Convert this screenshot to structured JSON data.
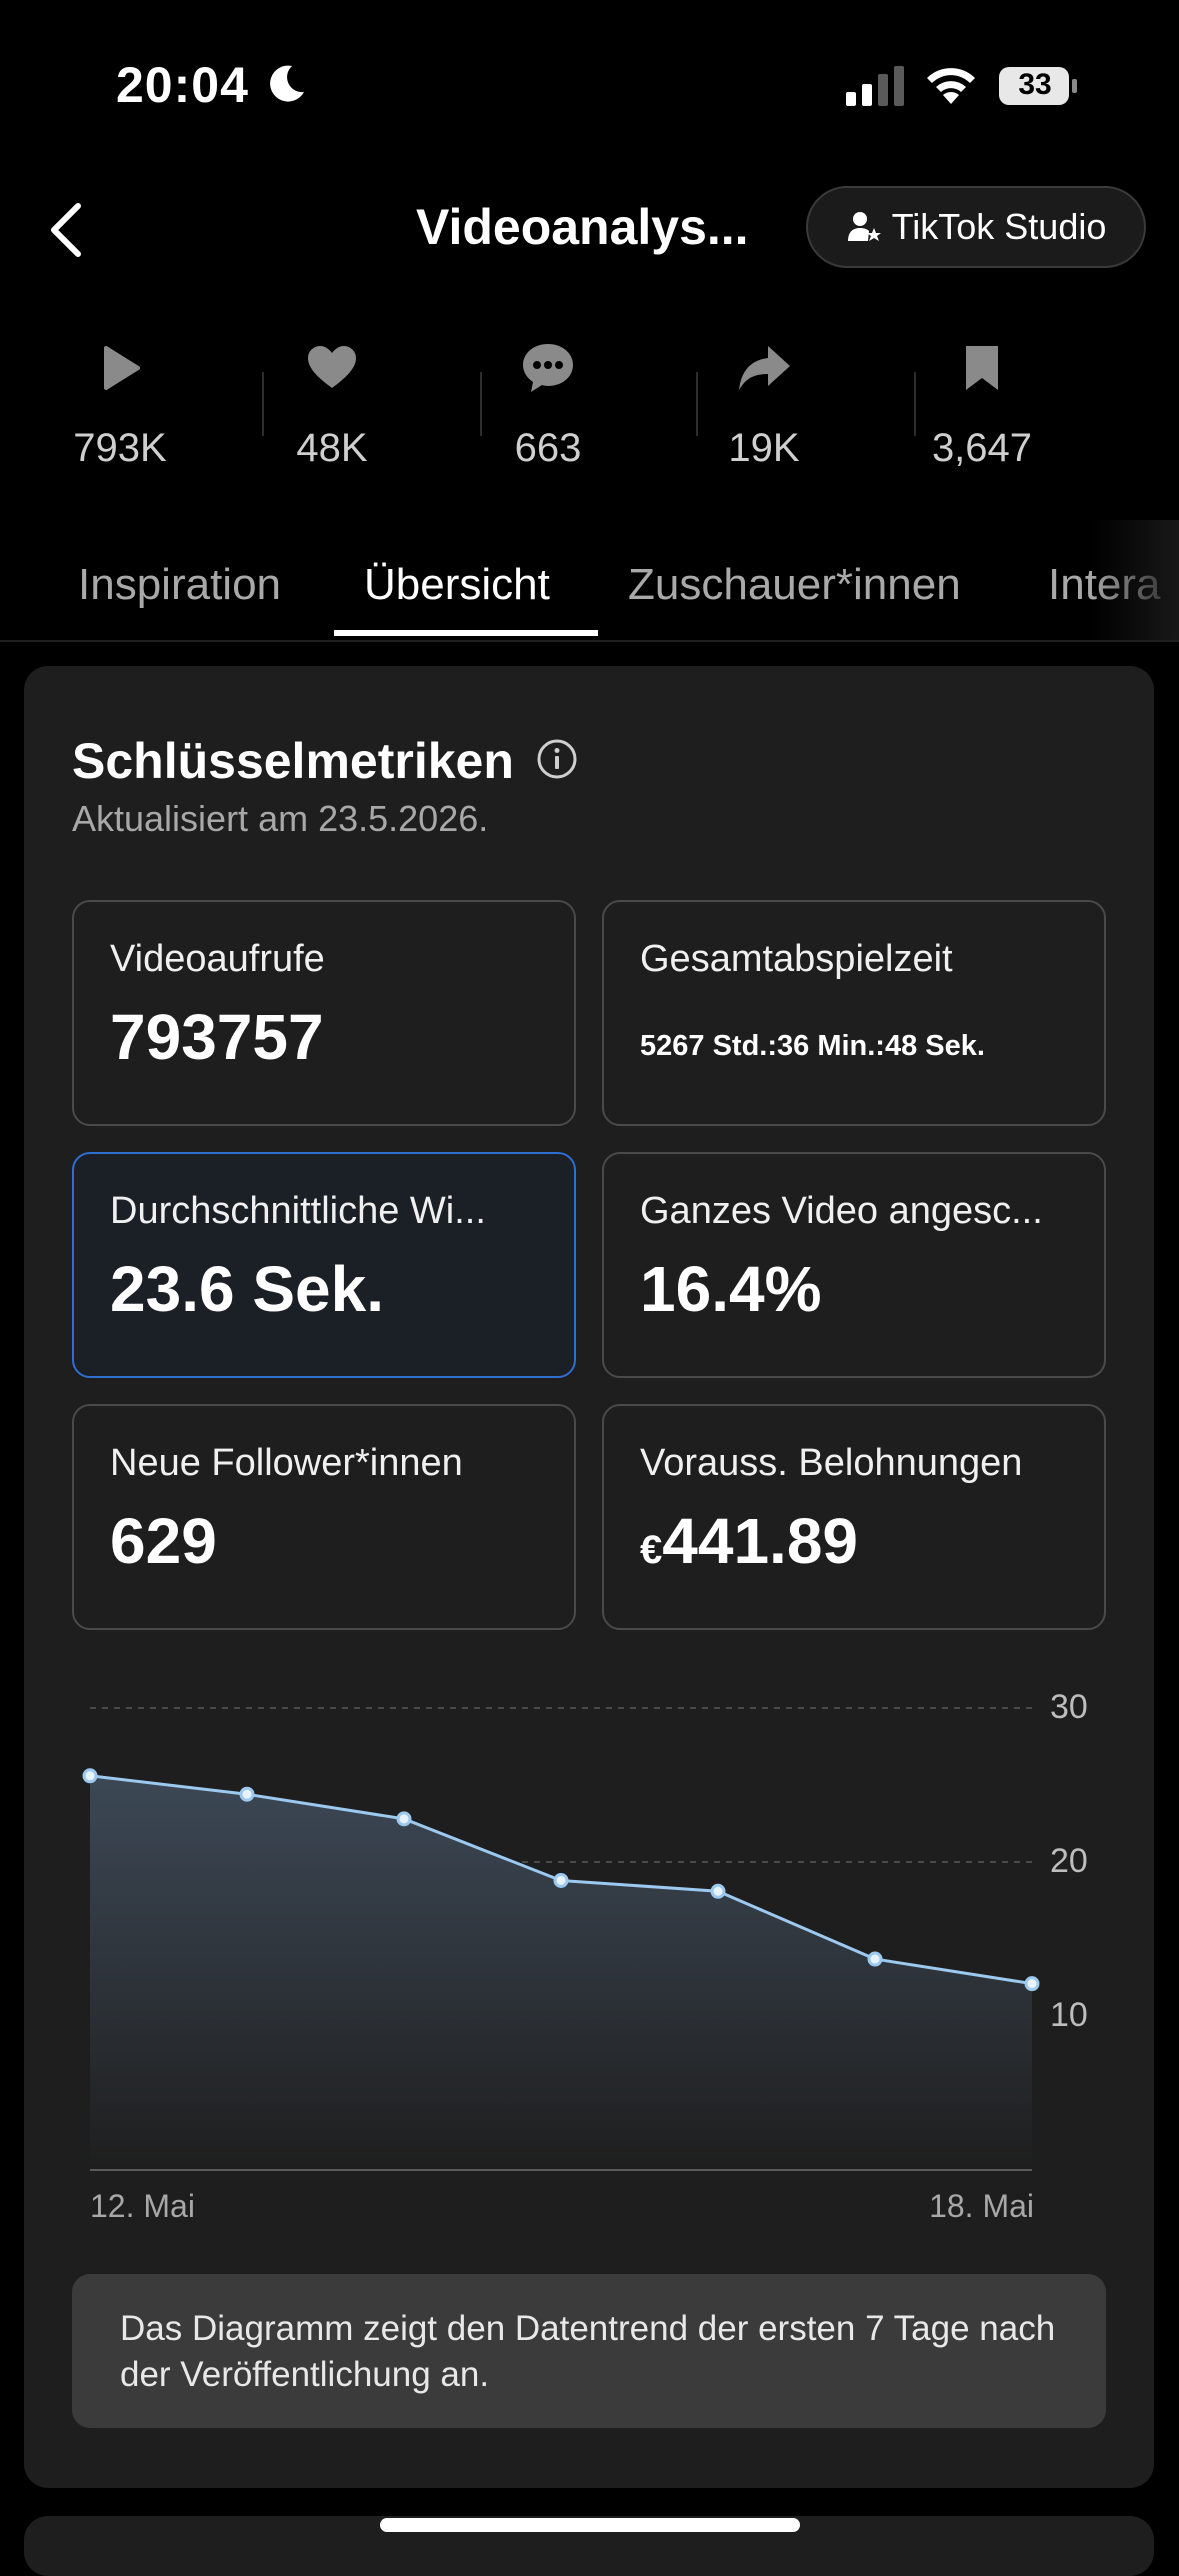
{
  "status_bar": {
    "time": "20:04",
    "battery": "33"
  },
  "header": {
    "title": "Videoanalys...",
    "studio_button": "TikTok Studio"
  },
  "stats": [
    {
      "icon": "play-icon",
      "value": "793K"
    },
    {
      "icon": "heart-icon",
      "value": "48K"
    },
    {
      "icon": "comment-icon",
      "value": "663"
    },
    {
      "icon": "share-icon",
      "value": "19K"
    },
    {
      "icon": "bookmark-icon",
      "value": "3,647"
    }
  ],
  "tabs": [
    {
      "label": "Inspiration"
    },
    {
      "label": "Übersicht"
    },
    {
      "label": "Zuschauer*innen"
    },
    {
      "label": "Intera"
    }
  ],
  "active_tab": "Übersicht",
  "section": {
    "title": "Schlüsselmetriken",
    "updated": "Aktualisiert am 23.5.2026."
  },
  "metrics": [
    {
      "label": "Videoaufrufe",
      "value": "793757"
    },
    {
      "label": "Gesamtabspielzeit",
      "value": "5267 Std.:36 Min.:48 Sek."
    },
    {
      "label": "Durchschnittliche Wi...",
      "value": "23.6 Sek.",
      "selected": true
    },
    {
      "label": "Ganzes Video angesc...",
      "value": "16.4%"
    },
    {
      "label": "Neue Follower*innen",
      "value": "629"
    },
    {
      "label": "Vorauss. Belohnungen",
      "currency": "€",
      "value": "441.89"
    }
  ],
  "chart_data": {
    "type": "area",
    "x_labels": [
      "12. Mai",
      "18. Mai"
    ],
    "values": [
      25.6,
      24.4,
      22.8,
      18.8,
      18.1,
      13.7,
      12.1
    ],
    "y_ticks": [
      30,
      20,
      10
    ],
    "ylim": [
      0,
      30
    ],
    "grid": true,
    "line_color": "#9cc9f0"
  },
  "note": "Das Diagramm zeigt den Datentrend der ersten 7 Tage nach der Veröffentlichung an."
}
